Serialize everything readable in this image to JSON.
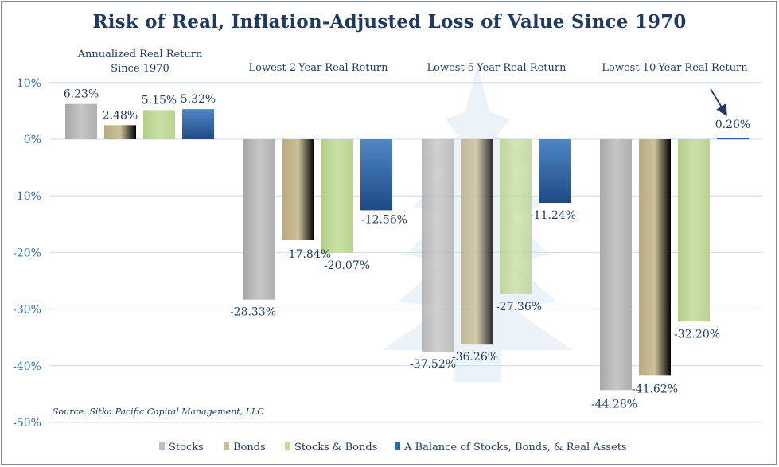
{
  "chart_data": {
    "type": "bar",
    "title": "Risk of Real, Inflation-Adjusted Loss of Value Since 1970",
    "categories": [
      [
        "Annualized Real Return",
        "Since 1970"
      ],
      [
        "Lowest 2-Year Real Return"
      ],
      [
        "Lowest 5-Year Real Return"
      ],
      [
        "Lowest 10-Year Real Return"
      ]
    ],
    "series": [
      {
        "name": "Stocks",
        "values": [
          6.23,
          -28.33,
          -37.52,
          -44.28
        ],
        "labels": [
          "6.23%",
          "-28.33%",
          "-37.52%",
          "-44.28%"
        ]
      },
      {
        "name": "Bonds",
        "values": [
          2.48,
          -17.84,
          -36.26,
          -41.62
        ],
        "labels": [
          "2.48%",
          "-17.84%",
          "-36.26%",
          "-41.62%"
        ]
      },
      {
        "name": "Stocks & Bonds",
        "values": [
          5.15,
          -20.07,
          -27.36,
          -32.2
        ],
        "labels": [
          "5.15%",
          "-20.07%",
          "-27.36%",
          "-32.20%"
        ]
      },
      {
        "name": "A Balance of Stocks, Bonds, & Real Assets",
        "values": [
          5.32,
          -12.56,
          -11.24,
          0.26
        ],
        "labels": [
          "5.32%",
          "-12.56%",
          "-11.24%",
          "0.26%"
        ]
      }
    ],
    "yticks": [
      "10%",
      "0%",
      "-10%",
      "-20%",
      "-30%",
      "-40%",
      "-50%"
    ],
    "ytick_values": [
      10,
      0,
      -10,
      -20,
      -30,
      -40,
      -50
    ],
    "ylim": [
      -50,
      10
    ],
    "grid": true,
    "legend": "bottom",
    "annotation": "arrow pointing to 0.26%",
    "source": "Source: Sitka Pacific Capital Management, LLC",
    "colors": {
      "Stocks": "#bdbdbd",
      "Bonds": "#c9bb94",
      "Stocks & Bonds": "#c4dba0",
      "Balance": "#2f64a8",
      "title": "#1f3a5f",
      "tick": "#2f6faa",
      "grid": "#c9dced"
    }
  }
}
